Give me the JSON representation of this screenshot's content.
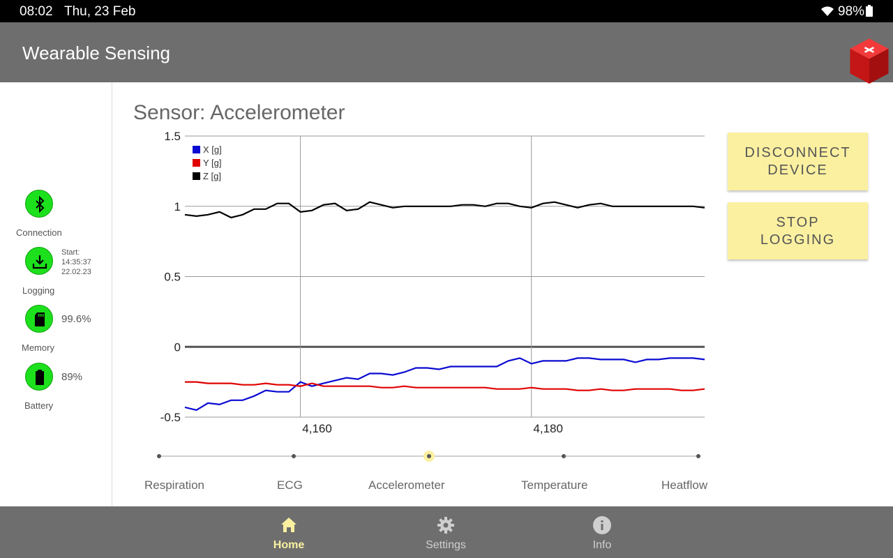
{
  "status_bar": {
    "time": "08:02",
    "date": "Thu, 23 Feb",
    "battery": "98%"
  },
  "app_bar": {
    "title": "Wearable Sensing"
  },
  "sidebar": {
    "connection_label": "Connection",
    "logging_label": "Logging",
    "logging_start_title": "Start:",
    "logging_start_time": "14:35:37",
    "logging_start_date": "22.02.23",
    "memory_label": "Memory",
    "memory_value": "99.6%",
    "battery_label": "Battery",
    "battery_value": "89%",
    "status_color": "#1de01d"
  },
  "sensor_title": "Sensor: Accelerometer",
  "buttons": {
    "disconnect_line1": "DISCONNECT",
    "disconnect_line2": "DEVICE",
    "stop_line1": "STOP",
    "stop_line2": "LOGGING"
  },
  "slider": {
    "options": [
      "Respiration",
      "ECG",
      "Accelerometer",
      "Temperature",
      "Heatflow"
    ],
    "selected_index": 2
  },
  "bottom_nav": {
    "items": [
      {
        "label": "Home",
        "icon": "home-icon",
        "active": true
      },
      {
        "label": "Settings",
        "icon": "gear-icon",
        "active": false
      },
      {
        "label": "Info",
        "icon": "info-icon",
        "active": false
      }
    ],
    "active_color": "#faf0a0",
    "inactive_color": "#cfcfcf"
  },
  "chart_data": {
    "type": "line",
    "ylim": [
      -0.5,
      1.5
    ],
    "xlim": [
      4150,
      4195
    ],
    "yticks": [
      "1.5",
      "1",
      "0.5",
      "0",
      "-0.5"
    ],
    "xticks": [
      {
        "value": 4160,
        "label": "4,160"
      },
      {
        "value": 4180,
        "label": "4,180"
      }
    ],
    "legend_position": "top-left",
    "series": [
      {
        "name": "X [g]",
        "color": "#0a0ad2",
        "x": [
          4150,
          4151,
          4152,
          4153,
          4154,
          4155,
          4156,
          4157,
          4158,
          4159,
          4160,
          4161,
          4162,
          4163,
          4164,
          4165,
          4166,
          4167,
          4168,
          4169,
          4170,
          4171,
          4172,
          4173,
          4174,
          4175,
          4176,
          4177,
          4178,
          4179,
          4180,
          4181,
          4182,
          4183,
          4184,
          4185,
          4186,
          4187,
          4188,
          4189,
          4190,
          4191,
          4192,
          4193,
          4194,
          4195
        ],
        "y": [
          -0.43,
          -0.45,
          -0.4,
          -0.41,
          -0.38,
          -0.38,
          -0.35,
          -0.31,
          -0.32,
          -0.32,
          -0.25,
          -0.28,
          -0.26,
          -0.24,
          -0.22,
          -0.23,
          -0.19,
          -0.19,
          -0.2,
          -0.18,
          -0.15,
          -0.15,
          -0.16,
          -0.14,
          -0.14,
          -0.14,
          -0.14,
          -0.14,
          -0.1,
          -0.08,
          -0.12,
          -0.1,
          -0.1,
          -0.1,
          -0.08,
          -0.08,
          -0.09,
          -0.09,
          -0.09,
          -0.11,
          -0.09,
          -0.09,
          -0.08,
          -0.08,
          -0.08,
          -0.09
        ]
      },
      {
        "name": "Y [g]",
        "color": "#e00000",
        "x": [
          4150,
          4151,
          4152,
          4153,
          4154,
          4155,
          4156,
          4157,
          4158,
          4159,
          4160,
          4161,
          4162,
          4163,
          4164,
          4165,
          4166,
          4167,
          4168,
          4169,
          4170,
          4171,
          4172,
          4173,
          4174,
          4175,
          4176,
          4177,
          4178,
          4179,
          4180,
          4181,
          4182,
          4183,
          4184,
          4185,
          4186,
          4187,
          4188,
          4189,
          4190,
          4191,
          4192,
          4193,
          4194,
          4195
        ],
        "y": [
          -0.25,
          -0.25,
          -0.26,
          -0.26,
          -0.26,
          -0.27,
          -0.27,
          -0.26,
          -0.27,
          -0.27,
          -0.28,
          -0.26,
          -0.28,
          -0.28,
          -0.28,
          -0.28,
          -0.28,
          -0.29,
          -0.29,
          -0.28,
          -0.29,
          -0.29,
          -0.29,
          -0.29,
          -0.29,
          -0.29,
          -0.29,
          -0.3,
          -0.3,
          -0.3,
          -0.29,
          -0.3,
          -0.3,
          -0.3,
          -0.31,
          -0.31,
          -0.3,
          -0.31,
          -0.31,
          -0.3,
          -0.3,
          -0.3,
          -0.3,
          -0.31,
          -0.31,
          -0.3
        ]
      },
      {
        "name": "Z [g]",
        "color": "#000000",
        "x": [
          4150,
          4151,
          4152,
          4153,
          4154,
          4155,
          4156,
          4157,
          4158,
          4159,
          4160,
          4161,
          4162,
          4163,
          4164,
          4165,
          4166,
          4167,
          4168,
          4169,
          4170,
          4171,
          4172,
          4173,
          4174,
          4175,
          4176,
          4177,
          4178,
          4179,
          4180,
          4181,
          4182,
          4183,
          4184,
          4185,
          4186,
          4187,
          4188,
          4189,
          4190,
          4191,
          4192,
          4193,
          4194,
          4195
        ],
        "y": [
          0.94,
          0.93,
          0.94,
          0.96,
          0.92,
          0.94,
          0.98,
          0.98,
          1.02,
          1.02,
          0.96,
          0.97,
          1.01,
          1.02,
          0.97,
          0.98,
          1.03,
          1.01,
          0.99,
          1.0,
          1.0,
          1.0,
          1.0,
          1.0,
          1.01,
          1.01,
          1.0,
          1.02,
          1.02,
          1.0,
          0.99,
          1.02,
          1.03,
          1.01,
          0.99,
          1.01,
          1.02,
          1.0,
          1.0,
          1.0,
          1.0,
          1.0,
          1.0,
          1.0,
          1.0,
          0.99
        ]
      }
    ]
  }
}
